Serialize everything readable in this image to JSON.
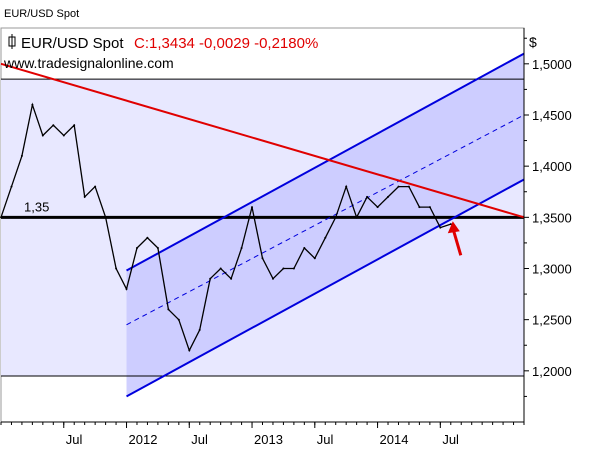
{
  "window": {
    "title": "EUR/USD Spot"
  },
  "legend": {
    "instrument": "EUR/USD Spot",
    "quote": "C:1,3434 -0,0029 -0,2180%",
    "source": "www.tradesignalonline.com"
  },
  "colors": {
    "price_line": "#000000",
    "resistance_line": "#e00000",
    "channel_line": "#0000dd",
    "channel_fill": "#c8c8ff",
    "range_fill": "#e8e8ff",
    "arrow": "#e00000",
    "quote_text": "#e00000"
  },
  "chart_data": {
    "type": "line",
    "title": "EUR/USD Spot",
    "y_axis_unit": "$",
    "ylim": [
      1.15,
      1.535
    ],
    "y_ticks": [
      {
        "value": 1.5,
        "label": "1,5000"
      },
      {
        "value": 1.45,
        "label": "1,4500"
      },
      {
        "value": 1.4,
        "label": "1,4000"
      },
      {
        "value": 1.35,
        "label": "1,3500"
      },
      {
        "value": 1.3,
        "label": "1,3000"
      },
      {
        "value": 1.25,
        "label": "1,2500"
      },
      {
        "value": 1.2,
        "label": "1,2000"
      }
    ],
    "x_range": [
      "2011-01",
      "2015-03"
    ],
    "x_ticks": [
      {
        "t": "2011-07",
        "label": "Jul"
      },
      {
        "t": "2012-01",
        "label": "2012"
      },
      {
        "t": "2012-07",
        "label": "Jul"
      },
      {
        "t": "2013-01",
        "label": "2013"
      },
      {
        "t": "2013-07",
        "label": "Jul"
      },
      {
        "t": "2014-01",
        "label": "2014"
      },
      {
        "t": "2014-07",
        "label": "Jul"
      }
    ],
    "series": [
      {
        "name": "EUR/USD Spot",
        "x": [
          "2011-01",
          "2011-02",
          "2011-03",
          "2011-04",
          "2011-05",
          "2011-06",
          "2011-07",
          "2011-08",
          "2011-09",
          "2011-10",
          "2011-11",
          "2011-12",
          "2012-01",
          "2012-02",
          "2012-03",
          "2012-04",
          "2012-05",
          "2012-06",
          "2012-07",
          "2012-08",
          "2012-09",
          "2012-10",
          "2012-11",
          "2012-12",
          "2013-01",
          "2013-02",
          "2013-03",
          "2013-04",
          "2013-05",
          "2013-06",
          "2013-07",
          "2013-08",
          "2013-09",
          "2013-10",
          "2013-11",
          "2013-12",
          "2014-01",
          "2014-02",
          "2014-03",
          "2014-04",
          "2014-05",
          "2014-06",
          "2014-07",
          "2014-08"
        ],
        "values": [
          1.35,
          1.38,
          1.41,
          1.46,
          1.43,
          1.44,
          1.43,
          1.44,
          1.37,
          1.38,
          1.35,
          1.3,
          1.28,
          1.32,
          1.33,
          1.32,
          1.26,
          1.25,
          1.22,
          1.24,
          1.29,
          1.3,
          1.29,
          1.32,
          1.36,
          1.31,
          1.29,
          1.3,
          1.3,
          1.32,
          1.31,
          1.33,
          1.35,
          1.38,
          1.35,
          1.37,
          1.36,
          1.37,
          1.38,
          1.38,
          1.36,
          1.36,
          1.34,
          1.3434
        ]
      }
    ],
    "horizontal_lines": [
      {
        "value": 1.485,
        "name": "range-top"
      },
      {
        "value": 1.35,
        "name": "support-1.35",
        "label": "1,35"
      },
      {
        "value": 1.195,
        "name": "range-bottom"
      }
    ],
    "resistance_line": {
      "from": {
        "t": "2011-01",
        "value": 1.5
      },
      "to": {
        "t": "2015-03",
        "value": 1.35
      }
    },
    "channel": {
      "upper": {
        "from": {
          "t": "2012-01",
          "value": 1.298
        },
        "to": {
          "t": "2015-03",
          "value": 1.51
        }
      },
      "middle": {
        "from": {
          "t": "2012-01",
          "value": 1.245
        },
        "to": {
          "t": "2015-03",
          "value": 1.45
        }
      },
      "lower": {
        "from": {
          "t": "2012-01",
          "value": 1.175
        },
        "to": {
          "t": "2015-03",
          "value": 1.387
        }
      }
    },
    "arrow_target": {
      "t": "2014-08",
      "value": 1.352
    },
    "grid": false,
    "legend_position": "top-left"
  }
}
